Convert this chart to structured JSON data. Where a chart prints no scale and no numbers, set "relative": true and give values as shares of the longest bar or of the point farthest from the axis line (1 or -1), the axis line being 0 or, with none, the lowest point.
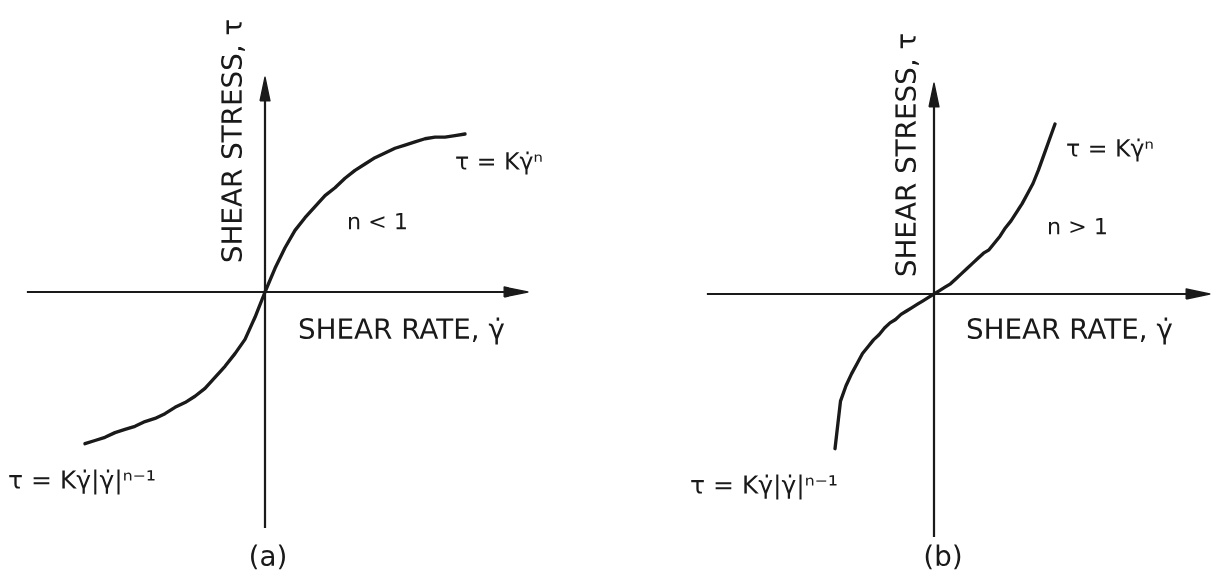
{
  "chart_data": [
    {
      "type": "line",
      "title": "(a)",
      "xlabel": "SHEAR RATE, γ̇",
      "ylabel": "SHEAR STRESS, τ",
      "relative": true,
      "categories": [
        null,
        null,
        null,
        null,
        null,
        null,
        null,
        null,
        null,
        null,
        null,
        null,
        null,
        null,
        null,
        null,
        null,
        null,
        null,
        null,
        null,
        null,
        null,
        null,
        null,
        null,
        null,
        null,
        null,
        null,
        null,
        null,
        null,
        null,
        null,
        null,
        null,
        null,
        null
      ],
      "series": [
        {
          "color": "#1a1a1a",
          "values": [
            -0.96,
            -0.94,
            -0.92,
            -0.89,
            -0.87,
            -0.85,
            -0.82,
            -0.8,
            -0.77,
            -0.73,
            -0.7,
            -0.66,
            -0.61,
            -0.54,
            -0.47,
            -0.39,
            -0.3,
            -0.16,
            0,
            0.15,
            0.28,
            0.39,
            0.47,
            0.54,
            0.61,
            0.66,
            0.72,
            0.77,
            0.81,
            0.85,
            0.88,
            0.91,
            0.93,
            0.95,
            0.97,
            0.98,
            0.98,
            0.99,
            1
          ]
        }
      ],
      "annotations": [
        "τ = Kγ̇ⁿ",
        "n < 1",
        "τ = Kγ̇|γ̇|ⁿ⁻¹"
      ]
    },
    {
      "type": "line",
      "title": "(b)",
      "xlabel": "SHEAR RATE, γ̇",
      "ylabel": "SHEAR STRESS, τ",
      "relative": true,
      "categories": [
        null,
        null,
        null,
        null,
        null,
        null,
        null,
        null,
        null,
        null,
        null,
        null,
        null,
        null,
        null,
        null,
        null,
        null,
        null,
        null,
        null,
        null,
        null,
        null,
        null,
        null,
        null,
        null,
        null,
        null,
        null,
        null,
        null,
        null,
        null,
        null,
        null,
        null,
        null,
        null,
        null
      ],
      "series": [
        {
          "color": "#1a1a1a",
          "values": [
            -0.91,
            -0.63,
            -0.54,
            -0.47,
            -0.41,
            -0.35,
            -0.31,
            -0.27,
            -0.24,
            -0.2,
            -0.17,
            -0.15,
            -0.12,
            -0.1,
            -0.08,
            -0.06,
            -0.04,
            -0.02,
            0,
            0.02,
            0.04,
            0.06,
            0.09,
            0.12,
            0.15,
            0.18,
            0.21,
            0.24,
            0.26,
            0.3,
            0.34,
            0.39,
            0.43,
            0.48,
            0.53,
            0.59,
            0.65,
            0.73,
            0.82,
            0.91,
            1
          ]
        }
      ],
      "annotations": [
        "τ = Kγ̇ⁿ",
        "n > 1",
        "τ = Kγ̇|γ̇|ⁿ⁻¹"
      ]
    }
  ]
}
